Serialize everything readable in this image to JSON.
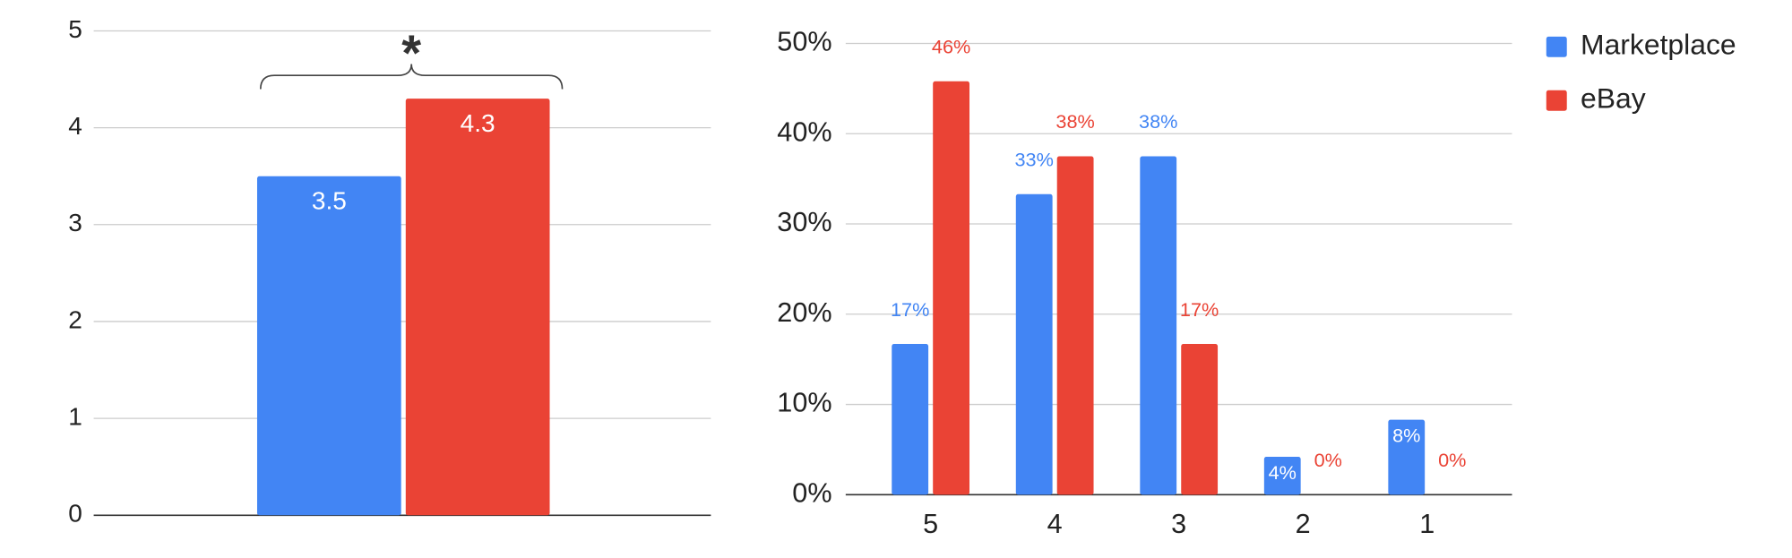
{
  "chart_data": [
    {
      "type": "bar",
      "annotation": "*",
      "categories": [
        null
      ],
      "series": [
        {
          "color": "#4285f4",
          "values": [
            3.5
          ]
        },
        {
          "color": "#ea4335",
          "values": [
            4.3
          ]
        }
      ],
      "ylim": [
        0,
        5
      ],
      "yticks": [
        0,
        1,
        2,
        3,
        4,
        5
      ],
      "grid": true
    },
    {
      "type": "bar",
      "categories": [
        "5",
        "4",
        "3",
        "2",
        "1"
      ],
      "series": [
        {
          "name": "Marketplace",
          "color": "#4285f4",
          "values": [
            16.7,
            33.3,
            37.5,
            4.2,
            8.3
          ],
          "value_labels": [
            "17%",
            "33%",
            "38%",
            "4%",
            "8%"
          ]
        },
        {
          "name": "eBay",
          "color": "#ea4335",
          "values": [
            45.8,
            37.5,
            16.7,
            0,
            0
          ],
          "value_labels": [
            "46%",
            "38%",
            "17%",
            "0%",
            "0%"
          ]
        }
      ],
      "ylim": [
        0,
        50
      ],
      "yticks": [
        {
          "value": 0,
          "label": "0%"
        },
        {
          "value": 10,
          "label": "10%"
        },
        {
          "value": 20,
          "label": "20%"
        },
        {
          "value": 30,
          "label": "30%"
        },
        {
          "value": 40,
          "label": "40%"
        },
        {
          "value": 50,
          "label": "50%"
        }
      ],
      "grid": true,
      "legend": "top-right"
    }
  ]
}
